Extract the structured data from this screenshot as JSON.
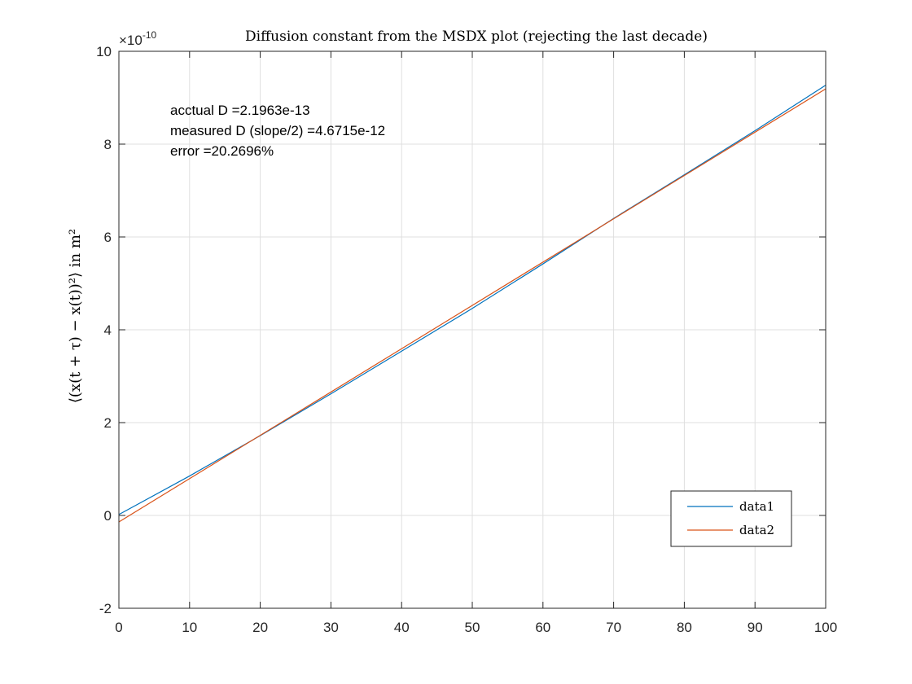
{
  "chart_data": {
    "type": "line",
    "title": "Diffusion constant from the MSDX plot (rejecting the last decade)",
    "xlabel": "",
    "ylabel": "⟨(x(t + τ) − x(t))²⟩ in m²",
    "xlim": [
      0,
      100
    ],
    "ylim": [
      -2e-10,
      1e-09
    ],
    "y_multiplier": {
      "base": "×10",
      "exponent": "-10"
    },
    "xticks": [
      0,
      10,
      20,
      30,
      40,
      50,
      60,
      70,
      80,
      90,
      100
    ],
    "xtick_labels": [
      "0",
      "10",
      "20",
      "30",
      "40",
      "50",
      "60",
      "70",
      "80",
      "90",
      "100"
    ],
    "yticks": [
      -2e-10,
      0,
      2e-10,
      4e-10,
      6e-10,
      8e-10,
      1e-09
    ],
    "ytick_labels": [
      "-2",
      "0",
      "2",
      "4",
      "6",
      "8",
      "10"
    ],
    "grid": true,
    "legend_position": "bottom-right",
    "annotations": [
      "acctual D =2.1963e-13",
      "measured D (slope/2) =4.6715e-12",
      "error =20.2696%"
    ],
    "series": [
      {
        "name": "data1",
        "color": "#0072BD",
        "x": [
          0,
          10,
          20,
          30,
          40,
          50,
          60,
          70,
          80,
          90,
          100
        ],
        "y": [
          2e-12,
          8.5e-11,
          1.72e-10,
          2.62e-10,
          3.54e-10,
          4.46e-10,
          5.42e-10,
          6.4e-10,
          7.34e-10,
          8.29e-10,
          9.27e-10
        ]
      },
      {
        "name": "data2",
        "color": "#D95319",
        "x": [
          0,
          100
        ],
        "y": [
          -1.4e-11,
          9.19e-10
        ]
      }
    ]
  }
}
